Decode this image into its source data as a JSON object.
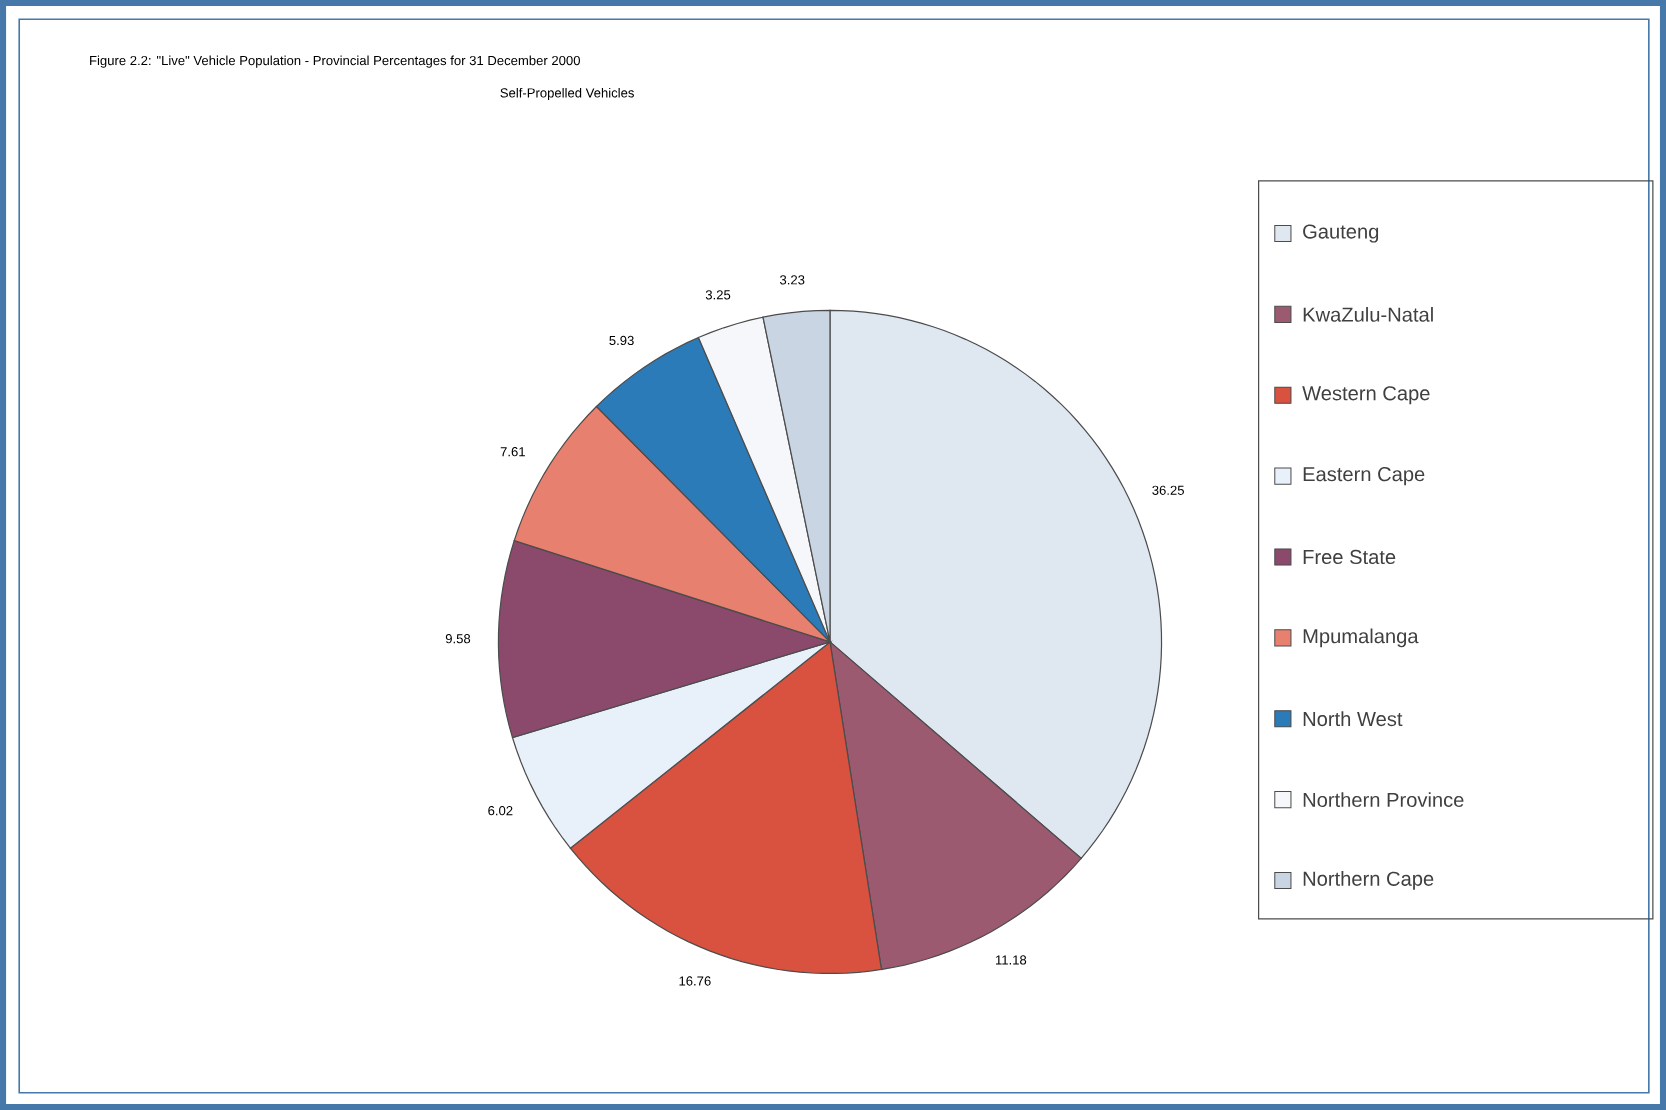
{
  "chart_data": {
    "type": "pie",
    "title": "Figure 2.2:  \"Live\" Vehicle Population - Provincial Percentages for 31 December 2000",
    "subtitle": "Self-Propelled Vehicles",
    "categories": [
      "Gauteng",
      "KwaZulu-Natal",
      "Western Cape",
      "Eastern Cape",
      "Free State",
      "Mpumalanga",
      "North West",
      "Northern Province",
      "Northern Cape"
    ],
    "values": [
      36.25,
      11.18,
      16.76,
      6.02,
      9.58,
      7.61,
      5.93,
      3.25,
      3.23
    ],
    "colors": [
      "#dfe7f1",
      "#9c5a70",
      "#d9513f",
      "#e8f0fa",
      "#8b4a6c",
      "#e8806f",
      "#2b7bb9",
      "#f5f7fb",
      "#c9d5e3"
    ],
    "data_labels": true,
    "legend": "right"
  }
}
